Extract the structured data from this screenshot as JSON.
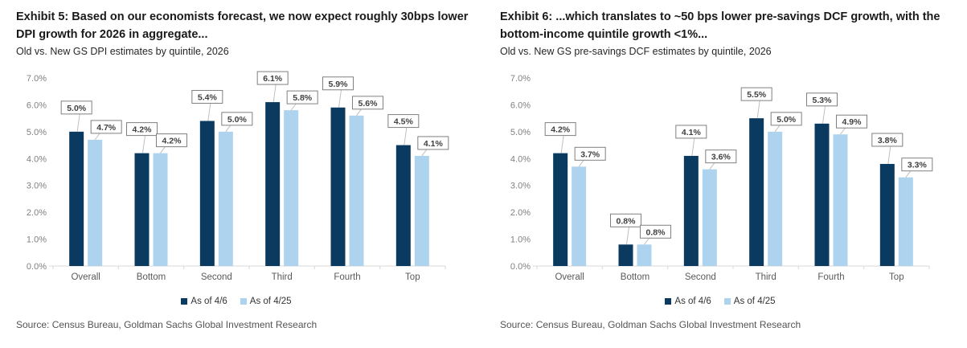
{
  "page": {
    "background": "#ffffff"
  },
  "chart_data": [
    {
      "type": "bar",
      "title": "Exhibit 5: Based on our economists forecast, we now expect roughly 30bps lower DPI growth for 2026 in aggregate...",
      "subtitle": "Old vs. New GS DPI estimates by quintile, 2026",
      "source": "Source: Census Bureau, Goldman Sachs Global Investment Research",
      "categories": [
        "Overall",
        "Bottom",
        "Second",
        "Third",
        "Fourth",
        "Top"
      ],
      "series": [
        {
          "name": "As of 4/6",
          "color": "#0a3a5f",
          "values": [
            5.0,
            4.2,
            5.4,
            6.1,
            5.9,
            4.5
          ]
        },
        {
          "name": "As of 4/25",
          "color": "#aed3ee",
          "values": [
            4.7,
            4.2,
            5.0,
            5.8,
            5.6,
            4.1
          ]
        }
      ],
      "xlabel": "",
      "ylabel": "",
      "ylim": [
        0,
        7
      ],
      "ytick_step": 1,
      "ytick_format": "percent1",
      "value_label_format": "percent1",
      "grid": false,
      "legend_position": "bottom",
      "label_box": {
        "border": "#808080",
        "fill": "#ffffff",
        "text": "#404040",
        "leader": "#bfbfbf"
      },
      "axis_color": "#d9d9d9",
      "ytick_label_color": "#808080",
      "xtick_label_color": "#595959"
    },
    {
      "type": "bar",
      "title": "Exhibit 6: ...which translates to ~50 bps lower pre-savings DCF growth, with the bottom-income quintile growth <1%...",
      "subtitle": "Old vs. New GS pre-savings DCF estimates by quintile, 2026",
      "source": "Source: Census Bureau, Goldman Sachs Global Investment Research",
      "categories": [
        "Overall",
        "Bottom",
        "Second",
        "Third",
        "Fourth",
        "Top"
      ],
      "series": [
        {
          "name": "As of 4/6",
          "color": "#0a3a5f",
          "values": [
            4.2,
            0.8,
            4.1,
            5.5,
            5.3,
            3.8
          ]
        },
        {
          "name": "As of 4/25",
          "color": "#aed3ee",
          "values": [
            3.7,
            0.8,
            3.6,
            5.0,
            4.9,
            3.3
          ]
        }
      ],
      "xlabel": "",
      "ylabel": "",
      "ylim": [
        0,
        7
      ],
      "ytick_step": 1,
      "ytick_format": "percent1",
      "value_label_format": "percent1",
      "grid": false,
      "legend_position": "bottom",
      "label_box": {
        "border": "#808080",
        "fill": "#ffffff",
        "text": "#404040",
        "leader": "#bfbfbf"
      },
      "axis_color": "#d9d9d9",
      "ytick_label_color": "#808080",
      "xtick_label_color": "#595959"
    }
  ]
}
